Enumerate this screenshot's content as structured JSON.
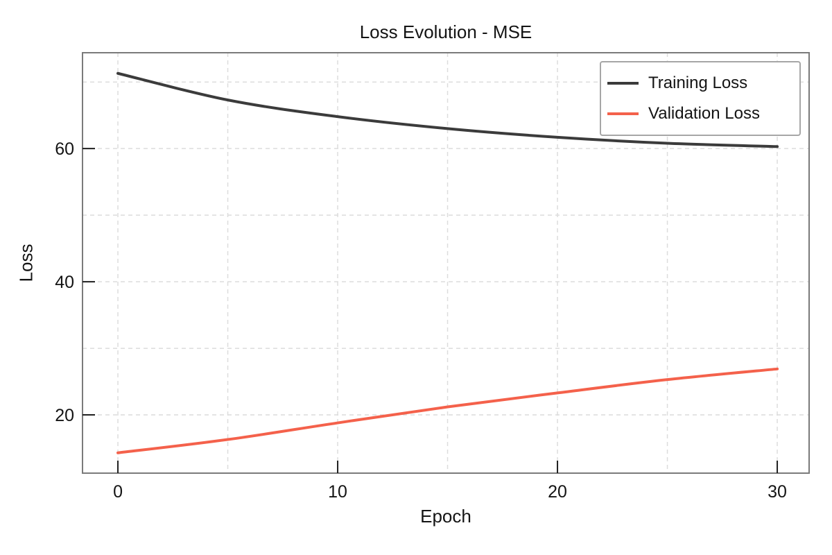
{
  "chart_data": {
    "type": "line",
    "title": "Loss Evolution - MSE",
    "xlabel": "Epoch",
    "ylabel": "Loss",
    "x": [
      0,
      5,
      10,
      15,
      20,
      25,
      30
    ],
    "series": [
      {
        "name": "Training Loss",
        "color": "#3b3b3b",
        "values": [
          71.3,
          67.3,
          64.8,
          63.0,
          61.7,
          60.8,
          60.3
        ]
      },
      {
        "name": "Validation Loss",
        "color": "#f4614b",
        "values": [
          14.3,
          16.3,
          18.8,
          21.2,
          23.3,
          25.3,
          26.9
        ]
      }
    ],
    "xlim": [
      -1.61,
      31.45
    ],
    "ylim": [
      11.25,
      74.4
    ],
    "x_ticks": [
      "0",
      "10",
      "20",
      "30"
    ],
    "x_tick_values": [
      0,
      10,
      20,
      30
    ],
    "y_ticks": [
      "20",
      "40",
      "60"
    ],
    "y_tick_values": [
      20,
      40,
      60
    ],
    "x_gridlines": [
      0,
      5,
      10,
      15,
      20,
      25,
      30
    ],
    "y_gridlines": [
      20,
      30,
      40,
      50,
      60,
      70
    ],
    "grid": "dashed",
    "legend_position": "upper right"
  },
  "colors": {
    "grid": "#dcdcdc",
    "spine": "#7a7a7a",
    "tick": "#1f1f1f",
    "text": "#141414",
    "background": "#ffffff",
    "legend_border": "#a6a6a6"
  }
}
